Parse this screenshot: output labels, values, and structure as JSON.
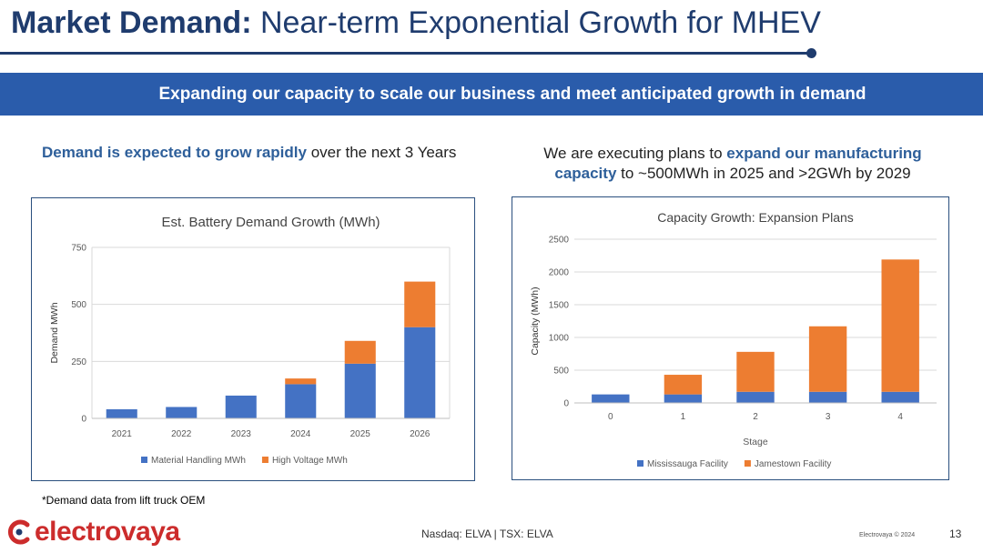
{
  "header": {
    "title_bold": "Market Demand:",
    "title_rest": " Near-term Exponential Growth for MHEV",
    "banner": "Expanding our capacity to scale our business and meet anticipated growth in demand"
  },
  "left_subheading": {
    "highlight": "Demand is expected to grow rapidly",
    "rest": " over the next 3 Years"
  },
  "right_subheading": {
    "part1": "We are executing plans to ",
    "highlight1": "expand our manufacturing",
    "highlight2": "capacity",
    "rest": " to ~500MWh in 2025 and >2GWh by 2029"
  },
  "footnote": "*Demand data from lift truck OEM",
  "footer": {
    "logo_text": "electrovaya",
    "ticker": "Nasdaq: ELVA | TSX: ELVA",
    "copyright": "Electrovaya © 2024",
    "page_number": "13"
  },
  "colors": {
    "navy": "#1f3c6e",
    "banner_blue": "#2a5cab",
    "highlight_blue": "#2e5f9a",
    "series_blue": "#4472c4",
    "series_orange": "#ed7d31",
    "brand_red": "#cc2c2c"
  },
  "chart_data": [
    {
      "type": "bar",
      "stacked": true,
      "title": "Est. Battery Demand Growth (MWh)",
      "xlabel": "",
      "ylabel": "Demand MWh",
      "categories": [
        "2021",
        "2022",
        "2023",
        "2024",
        "2025",
        "2026"
      ],
      "series": [
        {
          "name": "Material Handling MWh",
          "color": "#4472c4",
          "values": [
            40,
            50,
            100,
            150,
            240,
            400
          ]
        },
        {
          "name": "High Voltage MWh",
          "color": "#ed7d31",
          "values": [
            0,
            0,
            0,
            25,
            100,
            200
          ]
        }
      ],
      "ylim": [
        0,
        750
      ],
      "yticks": [
        0,
        250,
        500,
        750
      ],
      "grid": true,
      "legend": "bottom"
    },
    {
      "type": "bar",
      "stacked": true,
      "title": "Capacity Growth: Expansion Plans",
      "xlabel": "Stage",
      "ylabel": "Capacity (MWh)",
      "categories": [
        "0",
        "1",
        "2",
        "3",
        "4"
      ],
      "series": [
        {
          "name": "Mississauga Facility",
          "color": "#4472c4",
          "values": [
            130,
            130,
            170,
            170,
            170
          ]
        },
        {
          "name": "Jamestown Facility",
          "color": "#ed7d31",
          "values": [
            0,
            300,
            610,
            1000,
            2020
          ]
        }
      ],
      "ylim": [
        0,
        2500
      ],
      "yticks": [
        0,
        500,
        1000,
        1500,
        2000,
        2500
      ],
      "grid": true,
      "legend": "bottom"
    }
  ]
}
